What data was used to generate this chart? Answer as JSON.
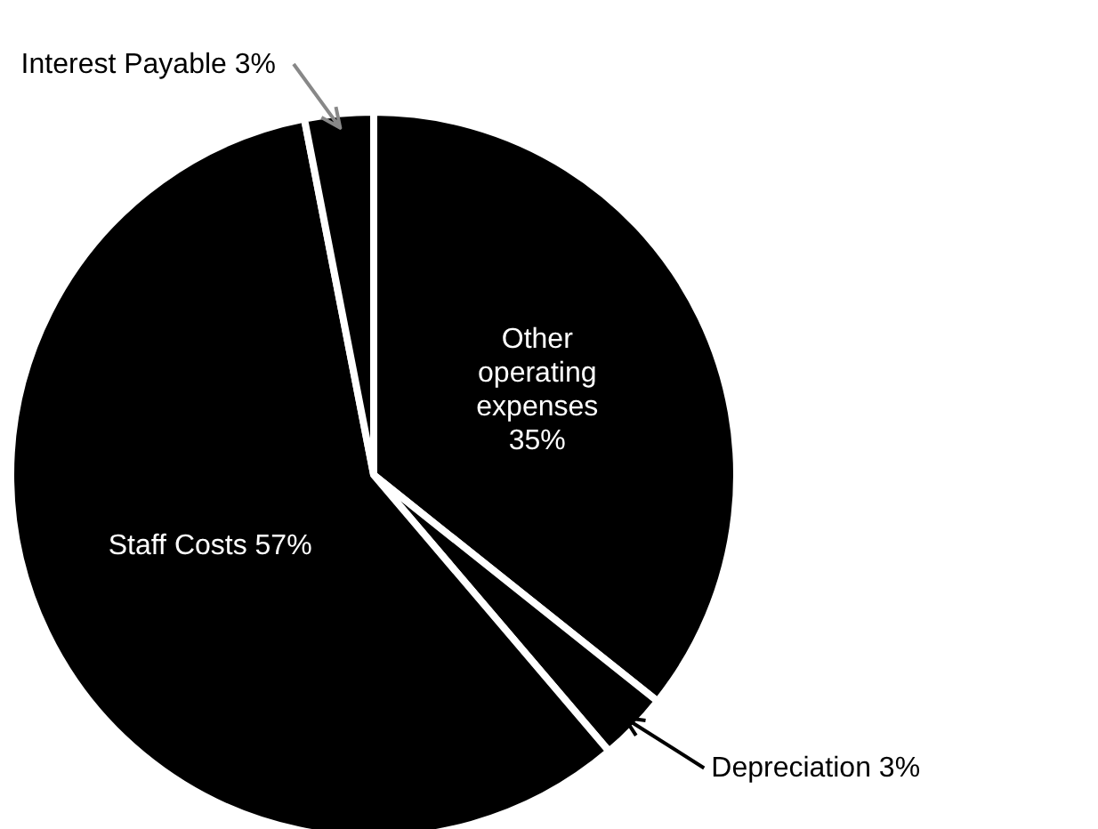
{
  "chart_data": {
    "type": "pie",
    "categories": [
      "Other operating expenses",
      "Depreciation",
      "Staff Costs",
      "Interest Payable"
    ],
    "values": [
      35,
      3,
      57,
      3
    ],
    "value_labels": [
      "35%",
      "3%",
      "57%",
      "3%"
    ],
    "colors": [
      "#000000",
      "#000000",
      "#000000",
      "#000000"
    ]
  }
}
